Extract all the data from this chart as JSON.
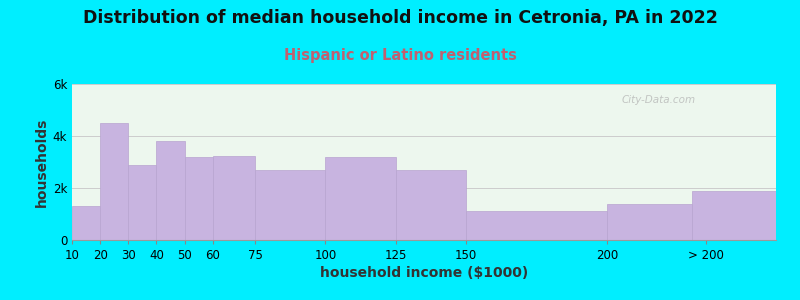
{
  "title": "Distribution of median household income in Cetronia, PA in 2022",
  "subtitle": "Hispanic or Latino residents",
  "xlabel": "household income ($1000)",
  "ylabel": "households",
  "bin_edges": [
    10,
    20,
    30,
    40,
    50,
    60,
    75,
    100,
    125,
    150,
    200,
    230,
    260
  ],
  "bar_labels": [
    "10",
    "20",
    "30",
    "40",
    "50",
    "60",
    "75",
    "100",
    "125",
    "150",
    "200",
    "> 200"
  ],
  "bar_values": [
    1300,
    4500,
    2900,
    3800,
    3200,
    3250,
    2700,
    3200,
    2700,
    1100,
    1400,
    1900
  ],
  "bar_color": "#c8b4e0",
  "bar_edge_color": "#b8a4d0",
  "background_color": "#00eeff",
  "plot_bg_color": "#edf7ee",
  "title_fontsize": 12.5,
  "subtitle_fontsize": 10.5,
  "subtitle_color": "#c06070",
  "axis_label_fontsize": 10,
  "tick_fontsize": 8.5,
  "ylim": [
    0,
    6000
  ],
  "yticks": [
    0,
    2000,
    4000,
    6000
  ],
  "ytick_labels": [
    "0",
    "2k",
    "4k",
    "6k"
  ],
  "xtick_positions": [
    10,
    20,
    30,
    40,
    50,
    60,
    75,
    100,
    125,
    150,
    200
  ],
  "xlim": [
    10,
    260
  ],
  "watermark": "City-Data.com"
}
